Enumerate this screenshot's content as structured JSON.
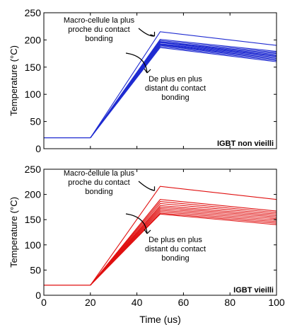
{
  "chart_data": [
    {
      "type": "line",
      "panel_label": "IGBT non vieilli",
      "color": "#1f2bd1",
      "ylabel": "Temperature (°C)",
      "xlabel": "",
      "xlim": [
        0,
        100
      ],
      "ylim": [
        0,
        250
      ],
      "xticks": [],
      "yticks": [
        "0",
        "50",
        "100",
        "150",
        "200",
        "250"
      ],
      "grid": false,
      "annotation_top": [
        "Macro-cellule la plus",
        "proche du contact",
        "bonding"
      ],
      "annotation_bottom": [
        "De plus en plus",
        "distant du contact",
        "bonding"
      ],
      "base": [
        [
          0,
          20
        ],
        [
          20,
          20
        ]
      ],
      "series": [
        {
          "values": [
            [
              20,
              20
            ],
            [
              50,
              215
            ],
            [
              100,
              190
            ]
          ]
        },
        {
          "values": [
            [
              20,
              20
            ],
            [
              50,
              201
            ],
            [
              100,
              179
            ]
          ]
        },
        {
          "values": [
            [
              20,
              20
            ],
            [
              50,
              199
            ],
            [
              100,
              177
            ]
          ]
        },
        {
          "values": [
            [
              20,
              20
            ],
            [
              50,
              197
            ],
            [
              100,
              175
            ]
          ]
        },
        {
          "values": [
            [
              20,
              20
            ],
            [
              50,
              196
            ],
            [
              100,
              173
            ]
          ]
        },
        {
          "values": [
            [
              20,
              20
            ],
            [
              50,
              195
            ],
            [
              100,
              171
            ]
          ]
        },
        {
          "values": [
            [
              20,
              20
            ],
            [
              50,
              193
            ],
            [
              100,
              170
            ]
          ]
        },
        {
          "values": [
            [
              20,
              20
            ],
            [
              50,
              192
            ],
            [
              100,
              168
            ]
          ]
        },
        {
          "values": [
            [
              20,
              20
            ],
            [
              50,
              191
            ],
            [
              100,
              166
            ]
          ]
        },
        {
          "values": [
            [
              20,
              20
            ],
            [
              50,
              190
            ],
            [
              100,
              164
            ]
          ]
        },
        {
          "values": [
            [
              20,
              20
            ],
            [
              50,
              188
            ],
            [
              100,
              162
            ]
          ]
        },
        {
          "values": [
            [
              20,
              20
            ],
            [
              50,
              186
            ],
            [
              100,
              160
            ]
          ]
        }
      ]
    },
    {
      "type": "line",
      "panel_label": "IGBT vieilli",
      "color": "#e01010",
      "ylabel": "Temperature (°C)",
      "xlabel": "Time (us)",
      "xlim": [
        0,
        100
      ],
      "ylim": [
        0,
        250
      ],
      "xticks": [
        "0",
        "20",
        "40",
        "60",
        "80",
        "100"
      ],
      "yticks": [
        "0",
        "50",
        "100",
        "150",
        "200",
        "250"
      ],
      "grid": false,
      "annotation_top": [
        "Macro-cellule la plus",
        "proche du contact",
        "bonding"
      ],
      "annotation_bottom": [
        "De plus en plus",
        "distant du contact",
        "bonding"
      ],
      "base": [
        [
          0,
          20
        ],
        [
          20,
          20
        ]
      ],
      "series": [
        {
          "values": [
            [
              20,
              20
            ],
            [
              50,
              216
            ],
            [
              100,
              190
            ]
          ]
        },
        {
          "values": [
            [
              20,
              20
            ],
            [
              50,
              190
            ],
            [
              100,
              167
            ]
          ]
        },
        {
          "values": [
            [
              20,
              20
            ],
            [
              50,
              186
            ],
            [
              100,
              164
            ]
          ]
        },
        {
          "values": [
            [
              20,
              20
            ],
            [
              50,
              182
            ],
            [
              100,
              161
            ]
          ]
        },
        {
          "values": [
            [
              20,
              20
            ],
            [
              50,
              178
            ],
            [
              100,
              158
            ]
          ]
        },
        {
          "values": [
            [
              20,
              20
            ],
            [
              50,
              175
            ],
            [
              100,
              155
            ]
          ]
        },
        {
          "values": [
            [
              20,
              20
            ],
            [
              50,
              172
            ],
            [
              100,
              152
            ]
          ]
        },
        {
          "values": [
            [
              20,
              20
            ],
            [
              50,
              169
            ],
            [
              100,
              149
            ]
          ]
        },
        {
          "values": [
            [
              20,
              20
            ],
            [
              50,
              166
            ],
            [
              100,
              146
            ]
          ]
        },
        {
          "values": [
            [
              20,
              20
            ],
            [
              50,
              163
            ],
            [
              100,
              143
            ]
          ]
        },
        {
          "values": [
            [
              20,
              20
            ],
            [
              50,
              161
            ],
            [
              100,
              140
            ]
          ]
        }
      ]
    }
  ]
}
